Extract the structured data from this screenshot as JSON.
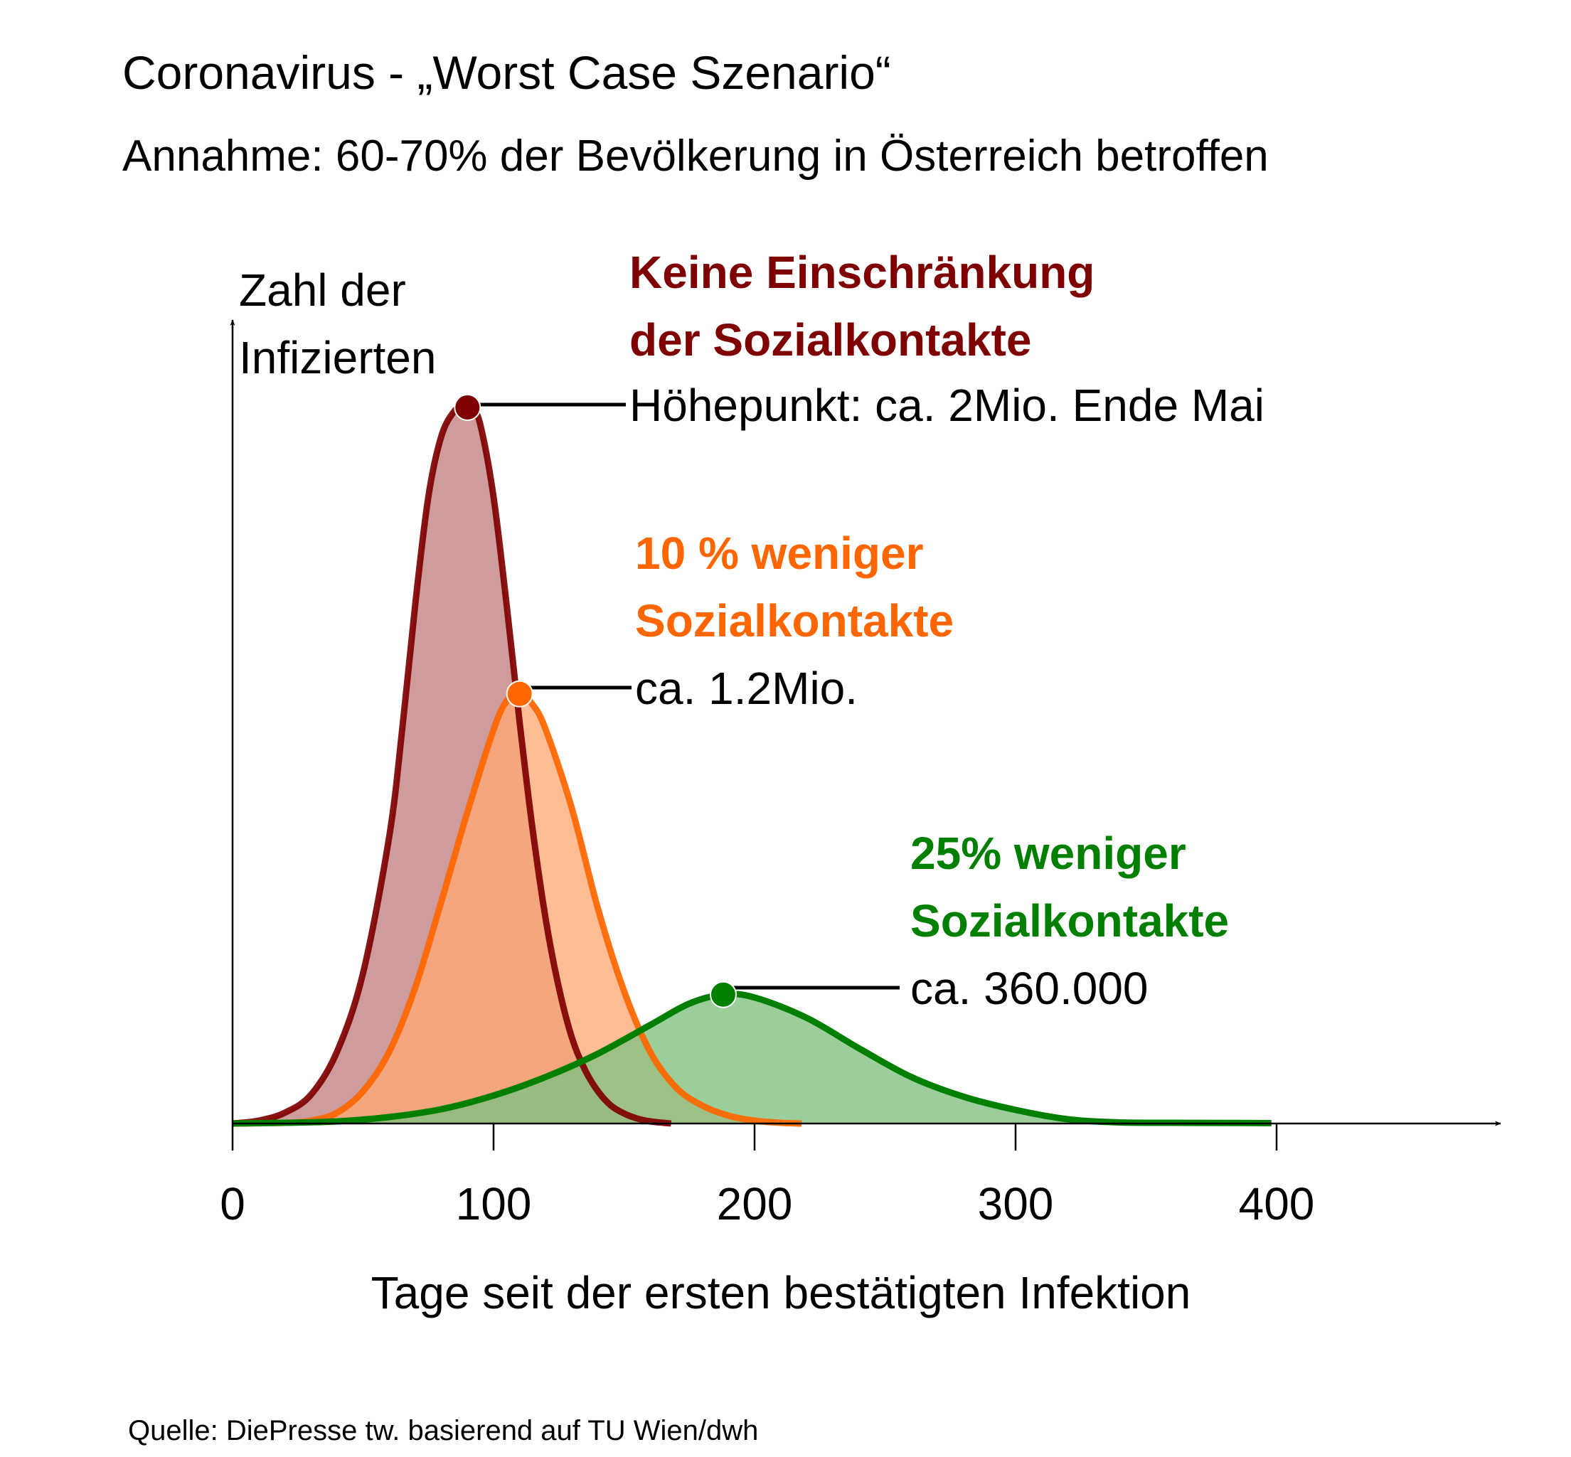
{
  "chart_data": {
    "type": "area",
    "title": "Coronavirus - „Worst Case Szenario“",
    "subtitle": "Annahme: 60-70% der Bevölkerung in Österreich betroffen",
    "xlabel": "Tage seit der ersten bestätigten Infektion",
    "ylabel_line1": "Zahl der",
    "ylabel_line2": "Infizierten",
    "xlim": [
      0,
      485
    ],
    "ylim": [
      0,
      2150000
    ],
    "x_ticks": [
      0,
      100,
      200,
      300,
      400
    ],
    "x_tick_labels": [
      "0",
      "100",
      "200",
      "300",
      "400"
    ],
    "grid": false,
    "source": "Quelle: DiePresse tw. basierend auf TU Wien/dwh",
    "series": [
      {
        "title_line1": "Keine Einschränkung",
        "title_line2": "der Sozialkontakte",
        "peak_label": "Höhepunkt: ca. 2Mio. Ende Mai",
        "color": "#7f0000",
        "fill": "#c08080",
        "peak": [
          90,
          2000000
        ],
        "x": [
          0,
          10,
          20,
          30,
          40,
          50,
          60,
          65,
          70,
          75,
          80,
          85,
          88,
          90,
          92,
          95,
          100,
          105,
          110,
          115,
          120,
          125,
          130,
          135,
          140,
          145,
          150,
          155,
          160,
          165,
          168
        ],
        "y": [
          0,
          8000,
          30000,
          80000,
          200000,
          420000,
          800000,
          1100000,
          1450000,
          1750000,
          1920000,
          1990000,
          2000000,
          2000000,
          1995000,
          1950000,
          1750000,
          1450000,
          1120000,
          820000,
          570000,
          380000,
          240000,
          150000,
          90000,
          50000,
          28000,
          14000,
          6000,
          2000,
          0
        ]
      },
      {
        "title_line1": "10 % weniger",
        "title_line2": "Sozialkontakte",
        "peak_label": "ca. 1.2Mio.",
        "color": "#ff6600",
        "fill": "#ffaa77",
        "peak": [
          110,
          1200000
        ],
        "x": [
          0,
          20,
          30,
          40,
          50,
          60,
          70,
          80,
          90,
          100,
          105,
          110,
          115,
          120,
          130,
          140,
          150,
          160,
          170,
          180,
          190,
          200,
          210,
          218
        ],
        "y": [
          0,
          2000,
          8000,
          30000,
          90000,
          200000,
          380000,
          620000,
          870000,
          1100000,
          1180000,
          1200000,
          1170000,
          1100000,
          880000,
          600000,
          370000,
          200000,
          100000,
          50000,
          22000,
          8000,
          2000,
          0
        ]
      },
      {
        "title_line1": "25% weniger",
        "title_line2": "Sozialkontakte",
        "peak_label": "ca. 360.000",
        "color": "#007f00",
        "fill": "#80c080",
        "peak": [
          188,
          360000
        ],
        "x": [
          0,
          20,
          40,
          60,
          80,
          100,
          120,
          140,
          160,
          175,
          188,
          200,
          220,
          240,
          260,
          280,
          300,
          320,
          340,
          360,
          380,
          398
        ],
        "y": [
          0,
          2000,
          6000,
          18000,
          40000,
          78000,
          130000,
          195000,
          275000,
          335000,
          360000,
          352000,
          295000,
          210000,
          130000,
          75000,
          38000,
          12000,
          3000,
          2000,
          1500,
          1000
        ]
      }
    ]
  },
  "colors": {
    "axis": "#000000",
    "dot_outline": "#ffffff"
  }
}
